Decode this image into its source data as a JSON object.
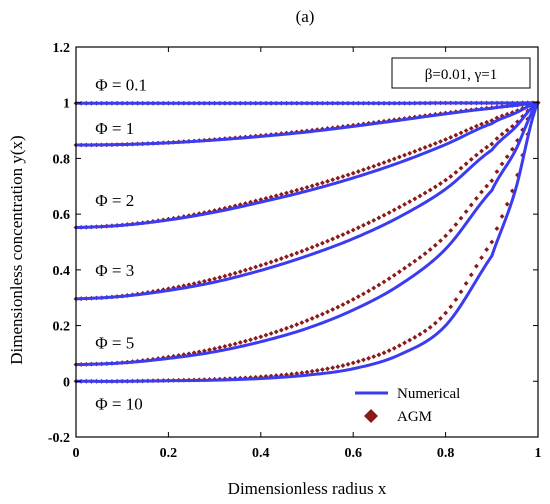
{
  "chart_data": {
    "type": "line",
    "title": "(a)",
    "xlabel": "Dimensionless radius  x",
    "ylabel": "Dimensionless concentration y(x)",
    "xlim": [
      0,
      1
    ],
    "ylim": [
      -0.2,
      1.2
    ],
    "xticks": [
      0,
      0.2,
      0.4,
      0.6,
      0.8,
      1
    ],
    "yticks": [
      -0.2,
      0,
      0.2,
      0.4,
      0.6,
      0.8,
      1,
      1.2
    ],
    "xtick_labels": [
      "0",
      "0.2",
      "0.4",
      "0.6",
      "0.8",
      "1"
    ],
    "ytick_labels": [
      "-0.2",
      "0",
      "0.2",
      "0.4",
      "0.6",
      "0.8",
      "1",
      "1.2"
    ],
    "grid": false,
    "parameter_box": "β=0.01, γ=1",
    "legend": {
      "position": "bottom-right",
      "entries": [
        {
          "label": "Numerical",
          "style": "line",
          "color": "#3b3bf0"
        },
        {
          "label": "AGM",
          "style": "diamond",
          "color": "#8b1a1a"
        }
      ]
    },
    "annotations": [
      {
        "text": "Φ = 0.1",
        "x": 0.02,
        "y": 1.065
      },
      {
        "text": "Φ = 1",
        "x": 0.02,
        "y": 0.91
      },
      {
        "text": "Φ = 2",
        "x": 0.02,
        "y": 0.65
      },
      {
        "text": "Φ = 3",
        "x": 0.02,
        "y": 0.4
      },
      {
        "text": "Φ = 5",
        "x": 0.02,
        "y": 0.14
      },
      {
        "text": "Φ = 10",
        "x": 0.02,
        "y": -0.08
      }
    ],
    "x": [
      0,
      0.1,
      0.2,
      0.3,
      0.4,
      0.5,
      0.6,
      0.7,
      0.8,
      0.9,
      0.95,
      1.0
    ],
    "series": [
      {
        "phi": 0.1,
        "numerical": [
          0.998,
          0.998,
          0.998,
          0.998,
          0.998,
          0.998,
          0.998,
          0.998,
          0.999,
          0.999,
          0.999,
          1.0
        ],
        "agm": [
          0.998,
          0.998,
          0.998,
          0.998,
          0.998,
          0.998,
          0.998,
          0.998,
          0.999,
          0.999,
          0.999,
          1.0
        ]
      },
      {
        "phi": 1,
        "numerical": [
          0.848,
          0.85,
          0.856,
          0.866,
          0.879,
          0.895,
          0.915,
          0.937,
          0.96,
          0.98,
          0.99,
          1.0
        ],
        "agm": [
          0.848,
          0.85,
          0.857,
          0.868,
          0.882,
          0.899,
          0.919,
          0.941,
          0.963,
          0.982,
          0.991,
          1.0
        ]
      },
      {
        "phi": 2,
        "numerical": [
          0.552,
          0.56,
          0.579,
          0.607,
          0.643,
          0.683,
          0.73,
          0.785,
          0.85,
          0.925,
          0.962,
          1.0
        ],
        "agm": [
          0.552,
          0.561,
          0.582,
          0.613,
          0.652,
          0.696,
          0.747,
          0.805,
          0.868,
          0.936,
          0.968,
          1.0
        ]
      },
      {
        "phi": 3,
        "numerical": [
          0.296,
          0.305,
          0.326,
          0.356,
          0.398,
          0.45,
          0.512,
          0.59,
          0.69,
          0.83,
          0.91,
          1.0
        ],
        "agm": [
          0.296,
          0.306,
          0.332,
          0.368,
          0.416,
          0.474,
          0.543,
          0.625,
          0.722,
          0.852,
          0.923,
          1.0
        ]
      },
      {
        "phi": 5,
        "numerical": [
          0.06,
          0.066,
          0.082,
          0.106,
          0.142,
          0.19,
          0.256,
          0.345,
          0.475,
          0.685,
          0.825,
          1.0
        ],
        "agm": [
          0.06,
          0.067,
          0.087,
          0.117,
          0.16,
          0.218,
          0.294,
          0.393,
          0.522,
          0.72,
          0.848,
          1.0
        ]
      },
      {
        "phi": 10,
        "numerical": [
          0.0,
          0.0,
          0.002,
          0.004,
          0.01,
          0.022,
          0.045,
          0.095,
          0.2,
          0.45,
          0.68,
          1.0
        ],
        "agm": [
          0.0,
          0.0,
          0.003,
          0.007,
          0.016,
          0.033,
          0.066,
          0.128,
          0.245,
          0.5,
          0.71,
          1.0
        ]
      }
    ]
  }
}
